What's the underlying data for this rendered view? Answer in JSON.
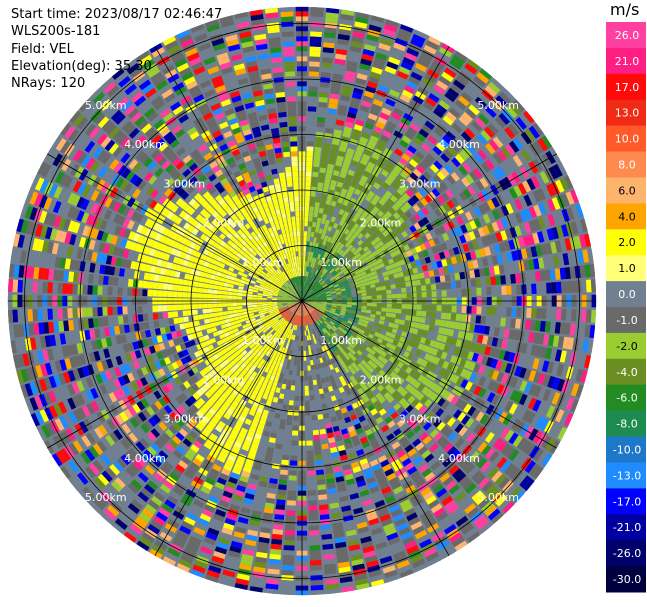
{
  "header": {
    "start_time": "Start time: 2023/08/17 02:46:47",
    "instrument": "WLS200s-181",
    "field": "Field: VEL",
    "elevation": "Elevation(deg): 35.30",
    "nrays": "NRays: 120"
  },
  "colorbar": {
    "unit": "m/s",
    "ticks": [
      "26.0",
      "21.0",
      "17.0",
      "13.0",
      "10.0",
      "8.0",
      "6.0",
      "4.0",
      "2.0",
      "1.0",
      "0.0",
      "-1.0",
      "-2.0",
      "-4.0",
      "-6.0",
      "-8.0",
      "-10.0",
      "-13.0",
      "-17.0",
      "-21.0",
      "-26.0",
      "-30.0"
    ],
    "colors": [
      "#ff40a0",
      "#ff1e82",
      "#ff0a0a",
      "#f02a14",
      "#ff5a28",
      "#ff8a50",
      "#ffb46e",
      "#ffa500",
      "#ffff0a",
      "#ffff78",
      "#708090",
      "#696969",
      "#9acd32",
      "#6b8e23",
      "#228b22",
      "#1e8c50",
      "#1e78c8",
      "#1e8cff",
      "#0000ff",
      "#0000a0",
      "#00006a",
      "#000040"
    ]
  },
  "chart_data": {
    "type": "heatmap",
    "subtype": "PPI polar radar (Doppler lidar radial velocity)",
    "title": "",
    "field": "VEL",
    "unit": "m/s",
    "elevation_deg": 35.3,
    "n_rays": 120,
    "range_rings_km": [
      1.0,
      2.0,
      3.0,
      4.0,
      5.0
    ],
    "ring_labels": [
      "1.00km",
      "2.00km",
      "3.00km",
      "4.00km",
      "5.00km"
    ],
    "max_range_km": 5.3,
    "grid": true,
    "spokes_deg": [
      0,
      30,
      60,
      90,
      120,
      150,
      180,
      210,
      240,
      270,
      300,
      330
    ],
    "velocity_pattern": {
      "inner_west_half": "yellow ~1 to 2 m/s (slightly toward +)",
      "inner_east_northeast": "green ~ -2 to -6 m/s",
      "center_south": "orange ~6 to 10 m/s",
      "center_north": "dark green ~ -6 m/s",
      "outer_ranges": "noisy, all colors (low SNR)"
    }
  }
}
